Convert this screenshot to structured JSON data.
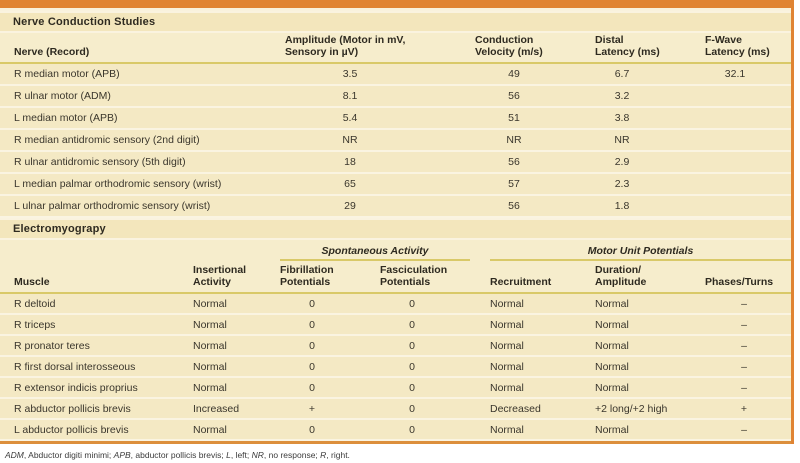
{
  "colors": {
    "accent_orange": "#e08433",
    "gold_rule": "#d9c968",
    "panel_cream": "#f6edcc",
    "row_band": "#f4e9c4",
    "section_band": "#f3e6bc",
    "text": "#3a362c"
  },
  "ncs": {
    "section_title": "Nerve Conduction Studies",
    "headers": [
      [
        "Nerve (Record)"
      ],
      [
        "Amplitude (Motor in mV,",
        "Sensory in µV)"
      ],
      [
        "Conduction",
        "Velocity (m/s)"
      ],
      [
        "Distal",
        "Latency (ms)"
      ],
      [
        "F-Wave",
        "Latency (ms)"
      ]
    ],
    "rows": [
      [
        "R median motor (APB)",
        "3.5",
        "49",
        "6.7",
        "32.1"
      ],
      [
        "R ulnar motor (ADM)",
        "8.1",
        "56",
        "3.2",
        ""
      ],
      [
        "L median motor (APB)",
        "5.4",
        "51",
        "3.8",
        ""
      ],
      [
        "R median antidromic sensory (2nd digit)",
        "NR",
        "NR",
        "NR",
        ""
      ],
      [
        "R ulnar antidromic sensory (5th digit)",
        "18",
        "56",
        "2.9",
        ""
      ],
      [
        "L median palmar orthodromic sensory (wrist)",
        "65",
        "57",
        "2.3",
        ""
      ],
      [
        "L ulnar palmar orthodromic sensory (wrist)",
        "29",
        "56",
        "1.8",
        ""
      ]
    ]
  },
  "emg": {
    "section_title": "Electromyograpy",
    "group_headers": {
      "spontaneous": "Spontaneous Activity",
      "motor_unit": "Motor Unit Potentials"
    },
    "headers": [
      [
        "Muscle"
      ],
      [
        "Insertional",
        "Activity"
      ],
      [
        "Fibrillation",
        "Potentials"
      ],
      [
        "Fasciculation",
        "Potentials"
      ],
      [
        "Recruitment"
      ],
      [
        "Duration/",
        "Amplitude"
      ],
      [
        "Phases/Turns"
      ]
    ],
    "rows": [
      [
        "R deltoid",
        "Normal",
        "0",
        "0",
        "Normal",
        "Normal",
        "–"
      ],
      [
        "R triceps",
        "Normal",
        "0",
        "0",
        "Normal",
        "Normal",
        "–"
      ],
      [
        "R pronator teres",
        "Normal",
        "0",
        "0",
        "Normal",
        "Normal",
        "–"
      ],
      [
        "R first dorsal interosseous",
        "Normal",
        "0",
        "0",
        "Normal",
        "Normal",
        "–"
      ],
      [
        "R extensor indicis proprius",
        "Normal",
        "0",
        "0",
        "Normal",
        "Normal",
        "–"
      ],
      [
        "R abductor pollicis brevis",
        "Increased",
        "+",
        "0",
        "Decreased",
        "+2 long/+2 high",
        "+"
      ],
      [
        "L abductor pollicis brevis",
        "Normal",
        "0",
        "0",
        "Normal",
        "Normal",
        "–"
      ]
    ]
  },
  "footnote": {
    "parts": [
      {
        "text": "ADM",
        "italic": true
      },
      {
        "text": ", Abductor digiti minimi; ",
        "italic": false
      },
      {
        "text": "APB",
        "italic": true
      },
      {
        "text": ", abductor pollicis brevis; ",
        "italic": false
      },
      {
        "text": "L",
        "italic": true
      },
      {
        "text": ", left; ",
        "italic": false
      },
      {
        "text": "NR",
        "italic": true
      },
      {
        "text": ", no response; ",
        "italic": false
      },
      {
        "text": "R",
        "italic": true
      },
      {
        "text": ", right.",
        "italic": false
      }
    ]
  }
}
